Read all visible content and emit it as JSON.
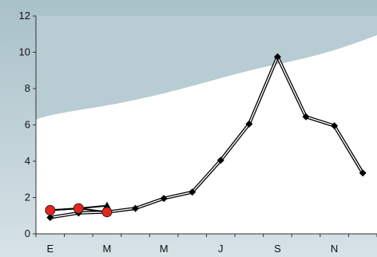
{
  "chart_data": {
    "type": "line",
    "title": "",
    "xlabel": "",
    "ylabel": "",
    "ylim": [
      0,
      12
    ],
    "yticks": [
      0,
      2,
      4,
      6,
      8,
      10,
      12
    ],
    "y_tick_labels": [
      "0",
      "2",
      "4",
      "6",
      "8",
      "10",
      "12"
    ],
    "x_tick_labels": [
      "E",
      "M",
      "M",
      "J",
      "S",
      "N"
    ],
    "x_positions": [
      1,
      2,
      3,
      4,
      5,
      6,
      7,
      8,
      9,
      10,
      11,
      12
    ],
    "grid": false,
    "legend": "none",
    "series": [
      {
        "values": [
          0.9,
          1.15,
          1.2,
          1.4,
          1.95,
          2.3,
          4.05,
          6.05,
          9.75,
          6.45,
          5.95,
          3.35
        ],
        "marker": "diamond",
        "color": "#000000"
      },
      {
        "values": [
          1.3,
          1.4,
          1.55
        ],
        "marker": "triangle",
        "color": "#000000"
      },
      {
        "values": [
          1.3,
          1.4,
          1.2
        ],
        "marker": "circle",
        "color": "#e8231d"
      }
    ]
  }
}
